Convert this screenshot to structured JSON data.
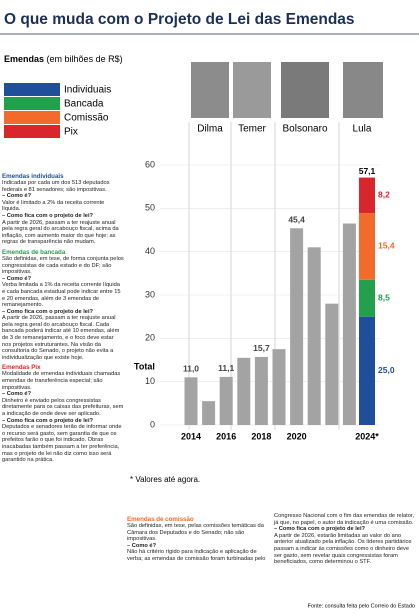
{
  "title": "O que muda com o Projeto de Lei das Emendas",
  "legend_title": {
    "bold": "Emendas",
    "rest": "(em bilhões de R$)"
  },
  "presidents": [
    "Dilma",
    "Temer",
    "Bolsonaro",
    "Lula"
  ],
  "chart_data": {
    "type": "stacked-bar",
    "categories": [
      "2014",
      null,
      "2016",
      null,
      "2018",
      null,
      "2020",
      null,
      null,
      null,
      "2024*"
    ],
    "series": [
      {
        "name": "Individuais",
        "color": "#1f4e9a",
        "values": [
          null,
          null,
          null,
          null,
          null,
          null,
          null,
          null,
          null,
          null,
          25.0
        ],
        "value_labels": [
          null,
          null,
          null,
          null,
          null,
          null,
          null,
          null,
          null,
          null,
          "25,0"
        ]
      },
      {
        "name": "Bancada",
        "color": "#22a04b",
        "values": [
          null,
          null,
          null,
          null,
          null,
          null,
          null,
          null,
          null,
          null,
          8.5
        ],
        "value_labels": [
          null,
          null,
          null,
          null,
          null,
          null,
          null,
          null,
          null,
          null,
          "8,5"
        ]
      },
      {
        "name": "Comissão",
        "color": "#f26b2a",
        "values": [
          null,
          null,
          null,
          null,
          null,
          null,
          null,
          null,
          null,
          null,
          15.4
        ],
        "value_labels": [
          null,
          null,
          null,
          null,
          null,
          null,
          null,
          null,
          null,
          null,
          "15,4"
        ]
      },
      {
        "name": "Pix",
        "color": "#d9262c",
        "values": [
          null,
          null,
          null,
          null,
          null,
          null,
          null,
          null,
          null,
          null,
          8.2
        ],
        "value_labels": [
          null,
          null,
          null,
          null,
          null,
          null,
          null,
          null,
          null,
          null,
          "8,2"
        ]
      },
      {
        "name": "Total",
        "color": "#a3a3a3",
        "values": [
          11.0,
          5.5,
          11.1,
          15.5,
          15.7,
          17.5,
          45.4,
          41.0,
          28.0,
          46.5,
          null
        ],
        "value_labels": [
          "11,0",
          null,
          "11,1",
          null,
          "15,7",
          null,
          "45,4",
          null,
          null,
          null,
          null
        ]
      }
    ],
    "annotations": [
      {
        "value": 57.1,
        "label": "57,1"
      }
    ],
    "ylim": [
      0,
      60
    ],
    "yticks": [
      0,
      10,
      20,
      30,
      40,
      50,
      60
    ],
    "grid": true,
    "footnote": "* Valores até agora."
  },
  "sections": [
    {
      "heading": "Emendas individuais",
      "color": "#1f4e9a",
      "paragraphs": [
        "Indicadas por cada um dos 513 deputados federais e 81 senadores; são impositivas.",
        "– Como é?",
        "Valor é limitado a 2% da receita corrente líquida.",
        "– Como fica com o projeto de lei?",
        "A partir de 2026, passam a ter reajuste anual pela regra geral do arcabouço fiscal, acima da inflação, com aumento maior do que hoje; as regras de transparência não mudam."
      ]
    },
    {
      "heading": "Emendas de bancada",
      "color": "#22a04b",
      "paragraphs": [
        "São definidas, em tese, de forma conjunta pelos congressistas de cada estado e do DF; são impositivas.",
        "– Como é?",
        "Verba limitada a 1% da receita corrente líquida e cada bancada estadual pode indicar entre 15 e 20 emendas, além de 3 emendas de remanejamento.",
        "– Como fica com o projeto de lei?",
        "A partir de 2026, passam a ter reajuste anual pela regra geral do arcabouço fiscal. Cada bancada poderá indicar até 10 emendas, além de 3 de remanejamento, e o foco deve estar nos projetos estruturantes. Na visão da consultoria do Senado, o projeto não evita a individualização que existe hoje."
      ]
    },
    {
      "heading": "Emendas Pix",
      "color": "#d9262c",
      "paragraphs": [
        "Modalidade de emendas individuais chamadas emendas de transferência especial; são impositivas.",
        "– Como é?",
        "Dinheiro é enviado pelos congressistas diretamente para os caixas das prefeituras, sem a indicação de onde deve ser aplicado.",
        "– Como fica com o projeto de lei?",
        "Deputados e senadores terão de informar onde o recurso será gasto, sem garantia de que os prefeitos farão o que foi indicado. Obras inacabadas também passam a ter preferência, mas o projeto de lei não diz como isso será garantido na prática."
      ]
    },
    {
      "heading": "Emendas de comissão",
      "color": "#f26b2a",
      "paragraphs": [
        "São definidas, em tese, pelas comissões temáticas da Câmara dos Deputados e do Senado; não são impositivas.",
        "– Como é?",
        "Não há critério rígido para indicação e aplicação de verba; as emendas de comissão foram turbinadas pelo Congresso Nacional com o fim das emendas de relator, já que, no papel, o autor da indicação é uma comissão.",
        "– Como fica com o projeto de lei?",
        "A partir de 2026, estarão limitadas ao valor do ano anterior atualizado pela inflação. Os líderes partidários passam a indicar às comissões como o dinheiro deve ser gasto, sem revelar quais congressistas foram beneficiados, como determinou o STF."
      ]
    }
  ],
  "source": "Fonte: consulta feita pelo Correio do Estado"
}
